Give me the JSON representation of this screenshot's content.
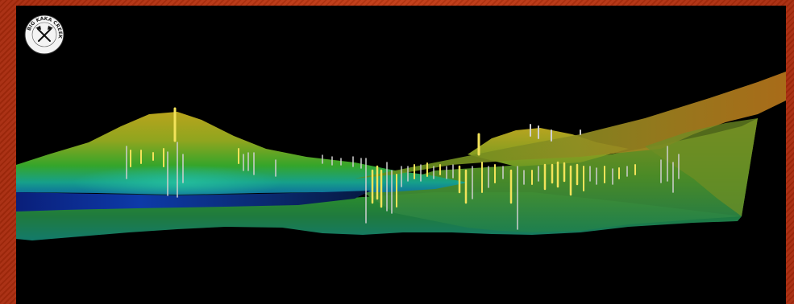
{
  "logo": {
    "text": "BIG KAKA CREEK",
    "icon": "crossed-hammers-icon"
  },
  "colors": {
    "frame": "#b3300e",
    "background": "#000000",
    "terrain_high": "#b8a61e",
    "terrain_mid": "#2f9b22",
    "terrain_low": "#0a2f8f",
    "drillhole_high": "#f2e34a",
    "drillhole_low": "#d8d8d8"
  }
}
